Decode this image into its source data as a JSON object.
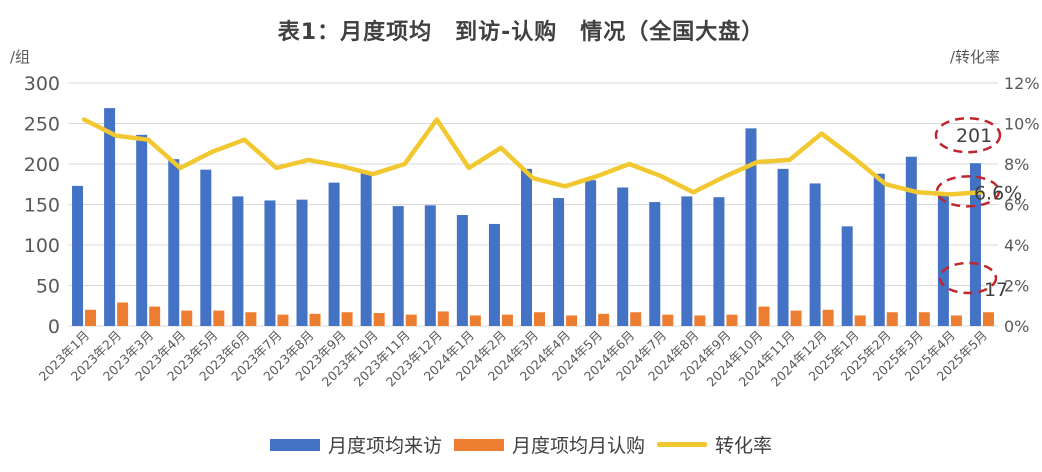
{
  "title": "表1：月度项均　到访-认购　情况（全国大盘）",
  "unit_left": "/组",
  "unit_right": "/转化率",
  "colors": {
    "visits": "#4472C4",
    "subs": "#ED7D31",
    "rate": "#F2C830",
    "callout": "#C0262D"
  },
  "chart_data": {
    "type": "bar",
    "title": "表1：月度项均　到访-认购　情况（全国大盘）",
    "ylabel": "/组",
    "y2label": "/转化率",
    "ylim": [
      0,
      300
    ],
    "y2lim": [
      0,
      0.12
    ],
    "yticks": [
      "0",
      "50",
      "100",
      "150",
      "200",
      "250",
      "300"
    ],
    "y2ticks": [
      "0%",
      "2%",
      "4%",
      "6%",
      "8%",
      "10%",
      "12%"
    ],
    "grid": true,
    "legend_position": "bottom",
    "categories": [
      "2023年1月",
      "2023年2月",
      "2023年3月",
      "2023年4月",
      "2023年5月",
      "2023年6月",
      "2023年7月",
      "2023年8月",
      "2023年9月",
      "2023年10月",
      "2023年11月",
      "2023年12月",
      "2024年1月",
      "2024年2月",
      "2024年3月",
      "2024年4月",
      "2024年5月",
      "2024年6月",
      "2024年7月",
      "2024年8月",
      "2024年9月",
      "2024年10月",
      "2024年11月",
      "2024年12月",
      "2025年1月",
      "2025年2月",
      "2025年3月",
      "2025年4月",
      "2025年5月"
    ],
    "series": [
      {
        "name": "月度项均来访",
        "type": "bar",
        "axis": "left",
        "values": [
          173,
          269,
          236,
          206,
          193,
          160,
          155,
          156,
          177,
          190,
          148,
          149,
          137,
          126,
          194,
          158,
          180,
          171,
          153,
          160,
          159,
          244,
          194,
          176,
          123,
          188,
          209,
          164,
          201
        ]
      },
      {
        "name": "月度项均月认购",
        "type": "bar",
        "axis": "left",
        "values": [
          20,
          29,
          24,
          19,
          19,
          17,
          14,
          15,
          17,
          16,
          14,
          18,
          13,
          14,
          17,
          13,
          15,
          17,
          14,
          13,
          14,
          24,
          19,
          20,
          13,
          17,
          17,
          13,
          17
        ]
      },
      {
        "name": "转化率",
        "type": "line",
        "axis": "right",
        "values": [
          0.102,
          0.094,
          0.092,
          0.078,
          0.086,
          0.092,
          0.078,
          0.082,
          0.079,
          0.075,
          0.08,
          0.102,
          0.078,
          0.088,
          0.073,
          0.069,
          0.074,
          0.08,
          0.074,
          0.066,
          0.074,
          0.081,
          0.082,
          0.095,
          0.083,
          0.07,
          0.066,
          0.065,
          0.066
        ]
      }
    ],
    "annotations": [
      "201",
      "6.6%",
      "17"
    ]
  }
}
